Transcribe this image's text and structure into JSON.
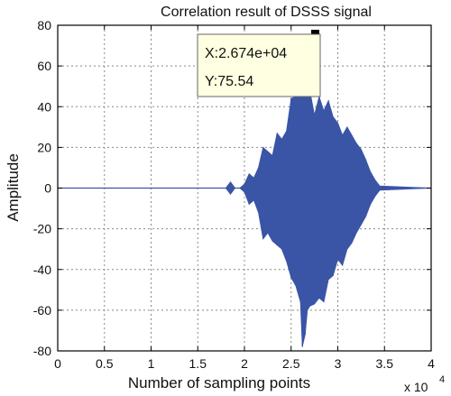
{
  "chart_data": {
    "type": "line",
    "title": "Correlation  result of DSSS signal",
    "xlabel": "Number of sampling points",
    "ylabel": "Amplitude",
    "x_multiplier": "x 10",
    "x_multiplier_exp": "4",
    "xlim": [
      0,
      4
    ],
    "ylim": [
      -80,
      80
    ],
    "xticks": [
      0,
      0.5,
      1,
      1.5,
      2,
      2.5,
      3,
      3.5,
      4
    ],
    "yticks": [
      80,
      60,
      40,
      20,
      0,
      -20,
      -40,
      -60,
      -80
    ],
    "grid": true,
    "colors": {
      "series": "#3a55a6",
      "axes": "#000000",
      "grid": "#888888",
      "datatip_bg": "#ffffe1"
    },
    "series": [
      {
        "x": [
          0,
          1.8,
          1.85,
          1.9,
          1.95,
          2.0,
          2.05,
          2.1,
          2.15,
          2.2,
          2.25,
          2.3,
          2.35,
          2.4,
          2.45,
          2.5,
          2.55,
          2.6,
          2.62,
          2.65,
          2.674,
          2.7,
          2.75,
          2.8,
          2.85,
          2.9,
          2.95,
          3.0,
          3.05,
          3.1,
          3.15,
          3.2,
          3.25,
          3.3,
          3.35,
          3.4,
          3.45,
          4
        ],
        "upper": [
          0,
          0,
          3,
          0,
          0,
          2,
          7,
          5,
          10,
          20,
          18,
          16,
          27,
          24,
          28,
          44,
          45,
          48,
          52,
          58,
          75.5,
          48,
          36,
          45,
          38,
          43,
          35,
          32,
          26,
          30,
          26,
          22,
          19,
          14,
          8,
          4,
          1,
          0
        ],
        "lower": [
          0,
          0,
          -3,
          0,
          0,
          -2,
          -8,
          -6,
          -12,
          -25,
          -22,
          -26,
          -28,
          -30,
          -36,
          -44,
          -48,
          -56,
          -78,
          -72,
          -60,
          -58,
          -57,
          -54,
          -56,
          -45,
          -43,
          -35,
          -38,
          -30,
          -27,
          -22,
          -18,
          -14,
          -8,
          -4,
          -1,
          0
        ]
      }
    ],
    "datatip": {
      "x_text": "X:2.674e+04",
      "y_text": "Y:75.54",
      "x": 2.674,
      "y": 75.54
    }
  }
}
